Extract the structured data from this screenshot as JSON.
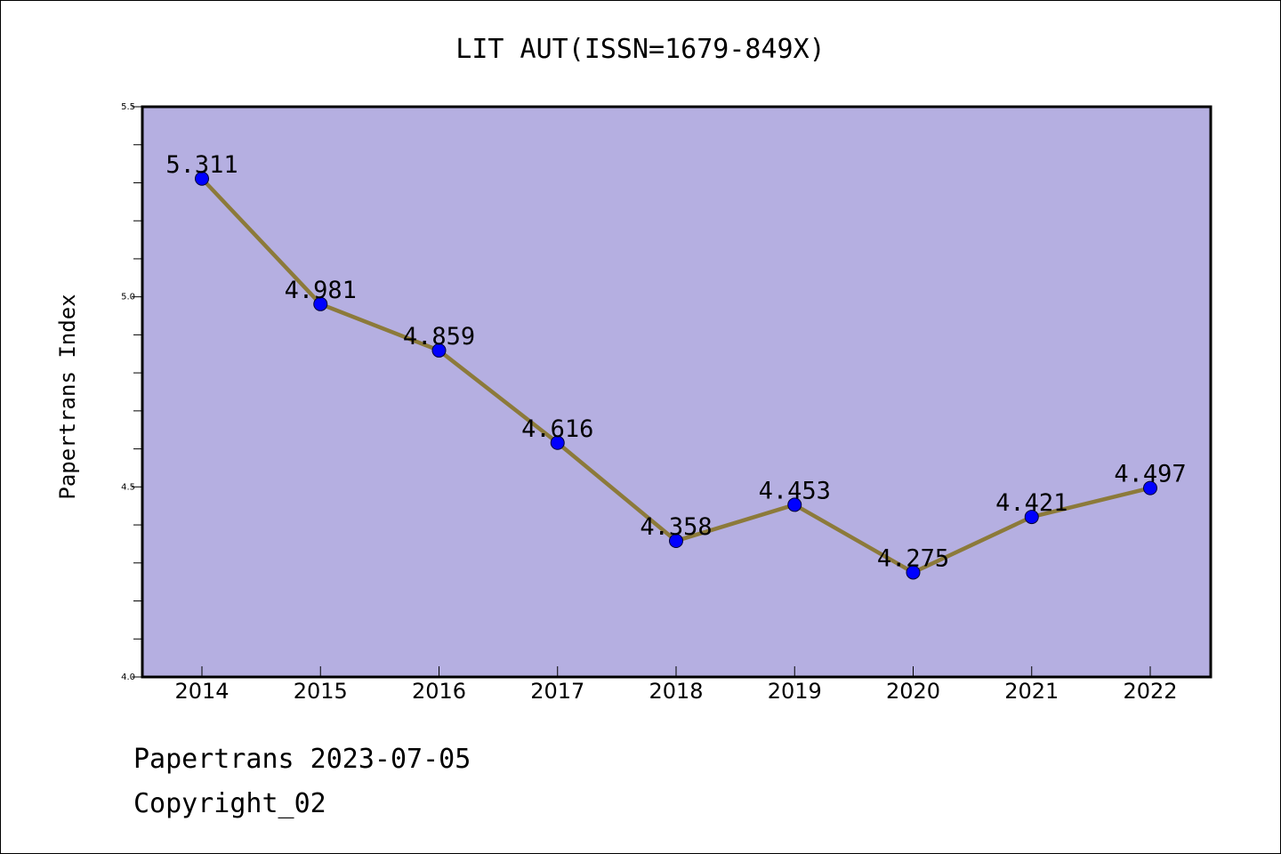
{
  "chart_data": {
    "type": "line",
    "title": "LIT AUT(ISSN=1679-849X)",
    "xlabel": "",
    "ylabel": "Papertrans Index",
    "categories": [
      "2014",
      "2015",
      "2016",
      "2017",
      "2018",
      "2019",
      "2020",
      "2021",
      "2022"
    ],
    "series": [
      {
        "values": [
          5.311,
          4.981,
          4.859,
          4.616,
          4.358,
          4.453,
          4.275,
          4.421,
          4.497
        ],
        "labels": [
          "5.311",
          "4.981",
          "4.859",
          "4.616",
          "4.358",
          "4.453",
          "4.275",
          "4.421",
          "4.497"
        ],
        "line_color": "#8c7a3a",
        "marker_color": "#0000ff"
      }
    ],
    "ylim": [
      4.0,
      5.5
    ],
    "y_ticks": [
      "4.0",
      "4.5",
      "5.0",
      "5.5"
    ],
    "y_tick_values": [
      4.0,
      4.5,
      5.0,
      5.5
    ],
    "plot_background": "#b5afe1",
    "grid": false,
    "legend": "none"
  },
  "footer": {
    "date_line": "Papertrans 2023-07-05",
    "copyright_line": "Copyright_02"
  }
}
